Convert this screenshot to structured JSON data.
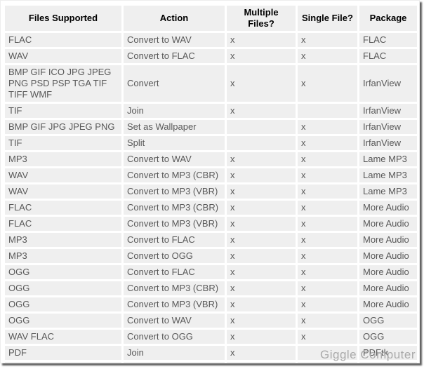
{
  "chart_data": {
    "type": "table",
    "columns": [
      {
        "key": "files",
        "label": "Files Supported"
      },
      {
        "key": "action",
        "label": "Action"
      },
      {
        "key": "multiple",
        "label": "Multiple Files?"
      },
      {
        "key": "single",
        "label": "Single File?"
      },
      {
        "key": "package",
        "label": "Package"
      }
    ],
    "rows": [
      {
        "files": "FLAC",
        "action": "Convert to WAV",
        "multiple": "x",
        "single": "x",
        "package": "FLAC"
      },
      {
        "files": "WAV",
        "action": "Convert to FLAC",
        "multiple": "x",
        "single": "x",
        "package": "FLAC"
      },
      {
        "files": "BMP GIF ICO JPG JPEG PNG PSD PSP TGA TIF TIFF WMF",
        "action": "Convert",
        "multiple": "x",
        "single": "x",
        "package": "IrfanView"
      },
      {
        "files": "TIF",
        "action": "Join",
        "multiple": "x",
        "single": "",
        "package": "IrfanView"
      },
      {
        "files": "BMP GIF JPG JPEG PNG",
        "action": "Set as Wallpaper",
        "multiple": "",
        "single": "x",
        "package": "IrfanView"
      },
      {
        "files": "TIF",
        "action": "Split",
        "multiple": "",
        "single": "x",
        "package": "IrfanView"
      },
      {
        "files": "MP3",
        "action": "Convert to WAV",
        "multiple": "x",
        "single": "x",
        "package": "Lame MP3"
      },
      {
        "files": "WAV",
        "action": "Convert to MP3 (CBR)",
        "multiple": "x",
        "single": "x",
        "package": "Lame MP3"
      },
      {
        "files": "WAV",
        "action": "Convert to MP3 (VBR)",
        "multiple": "x",
        "single": "x",
        "package": "Lame MP3"
      },
      {
        "files": "FLAC",
        "action": "Convert to MP3 (CBR)",
        "multiple": "x",
        "single": "x",
        "package": "More Audio"
      },
      {
        "files": "FLAC",
        "action": "Convert to MP3 (VBR)",
        "multiple": "x",
        "single": "x",
        "package": "More Audio"
      },
      {
        "files": "MP3",
        "action": "Convert to FLAC",
        "multiple": "x",
        "single": "x",
        "package": "More Audio"
      },
      {
        "files": "MP3",
        "action": "Convert to OGG",
        "multiple": "x",
        "single": "x",
        "package": "More Audio"
      },
      {
        "files": "OGG",
        "action": "Convert to FLAC",
        "multiple": "x",
        "single": "x",
        "package": "More Audio"
      },
      {
        "files": "OGG",
        "action": "Convert to MP3 (CBR)",
        "multiple": "x",
        "single": "x",
        "package": "More Audio"
      },
      {
        "files": "OGG",
        "action": "Convert to MP3 (VBR)",
        "multiple": "x",
        "single": "x",
        "package": "More Audio"
      },
      {
        "files": "OGG",
        "action": "Convert to WAV",
        "multiple": "x",
        "single": "x",
        "package": "OGG"
      },
      {
        "files": "WAV FLAC",
        "action": "Convert to OGG",
        "multiple": "x",
        "single": "x",
        "package": "OGG"
      },
      {
        "files": "PDF",
        "action": "Join",
        "multiple": "x",
        "single": "",
        "package": "PDFtk"
      },
      {
        "files": "PDF",
        "action": "Split",
        "multiple": "",
        "single": "x",
        "package": "PDFtk"
      }
    ]
  },
  "watermark": {
    "text": "Giggle Computer"
  },
  "colors": {
    "cell_background": "#efefef",
    "header_text": "#000000",
    "cell_text": "#585858",
    "watermark_text": "#aaaaaa",
    "frame_shadow": "#373737"
  }
}
